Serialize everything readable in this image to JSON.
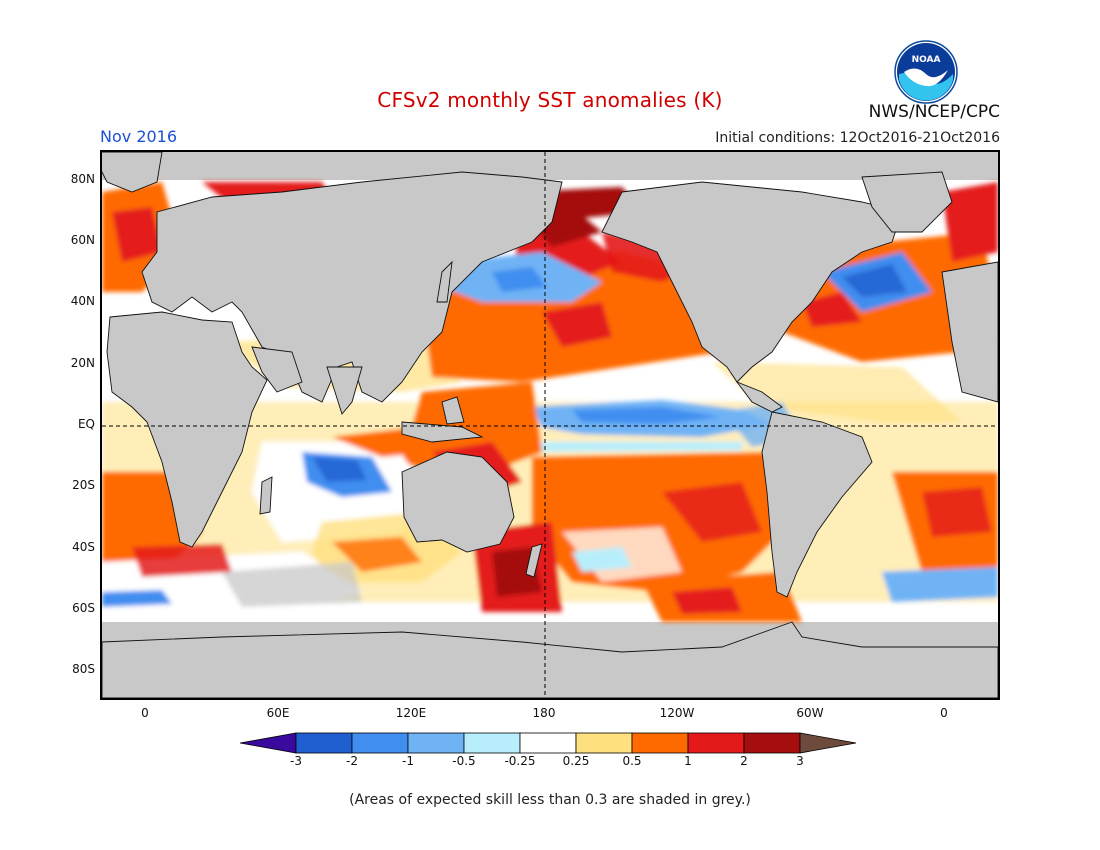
{
  "header": {
    "title": "CFSv2 monthly SST anomalies (K)",
    "valid_month": "Nov 2016",
    "initial_conditions": "Initial conditions: 12Oct2016-21Oct2016",
    "agency": "NWS/NCEP/CPC",
    "logo_text": "NOAA"
  },
  "axes": {
    "lat_ticks": [
      "80N",
      "60N",
      "40N",
      "20N",
      "EQ",
      "20S",
      "40S",
      "60S",
      "80S"
    ],
    "lon_ticks": [
      "0",
      "60E",
      "120E",
      "180",
      "120W",
      "60W",
      "0"
    ]
  },
  "legend": {
    "labels": [
      "-3",
      "-2",
      "-1",
      "-0.5",
      "-0.25",
      "0.25",
      "0.5",
      "1",
      "2",
      "3"
    ],
    "colors": [
      "#3a0a9f",
      "#1f5fd0",
      "#3f8ef0",
      "#6fb3f5",
      "#b8eefc",
      "#ffffff",
      "#ffe07e",
      "#ff6a00",
      "#e41a1a",
      "#a50e0e",
      "#6e4a3c"
    ]
  },
  "footer": {
    "note": "(Areas of expected skill less than 0.3 are shaded in grey.)"
  },
  "colors": {
    "land": "#c8c8c8",
    "title": "#d00000",
    "month": "#1d4fd8"
  }
}
